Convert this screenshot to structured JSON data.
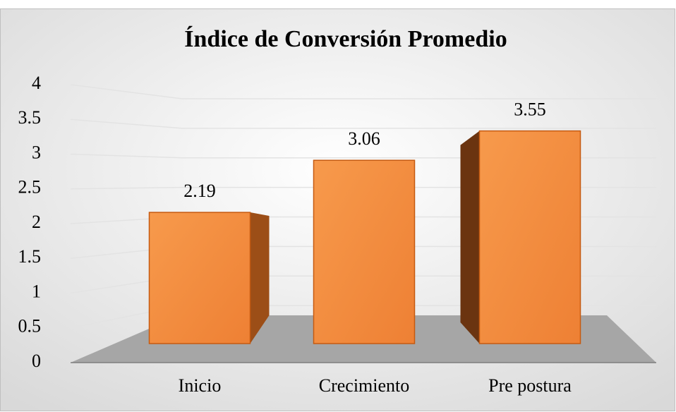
{
  "chart_data": {
    "type": "bar3d",
    "title": "Índice de Conversión Promedio",
    "categories": [
      "Inicio",
      "Crecimiento",
      "Pre postura"
    ],
    "values": [
      2.19,
      3.06,
      3.55
    ],
    "color": "#ed7d31",
    "ylim": [
      0,
      4
    ],
    "yticks": [
      0,
      0.5,
      1,
      1.5,
      2,
      2.5,
      3,
      3.5,
      4
    ],
    "grid": true
  }
}
